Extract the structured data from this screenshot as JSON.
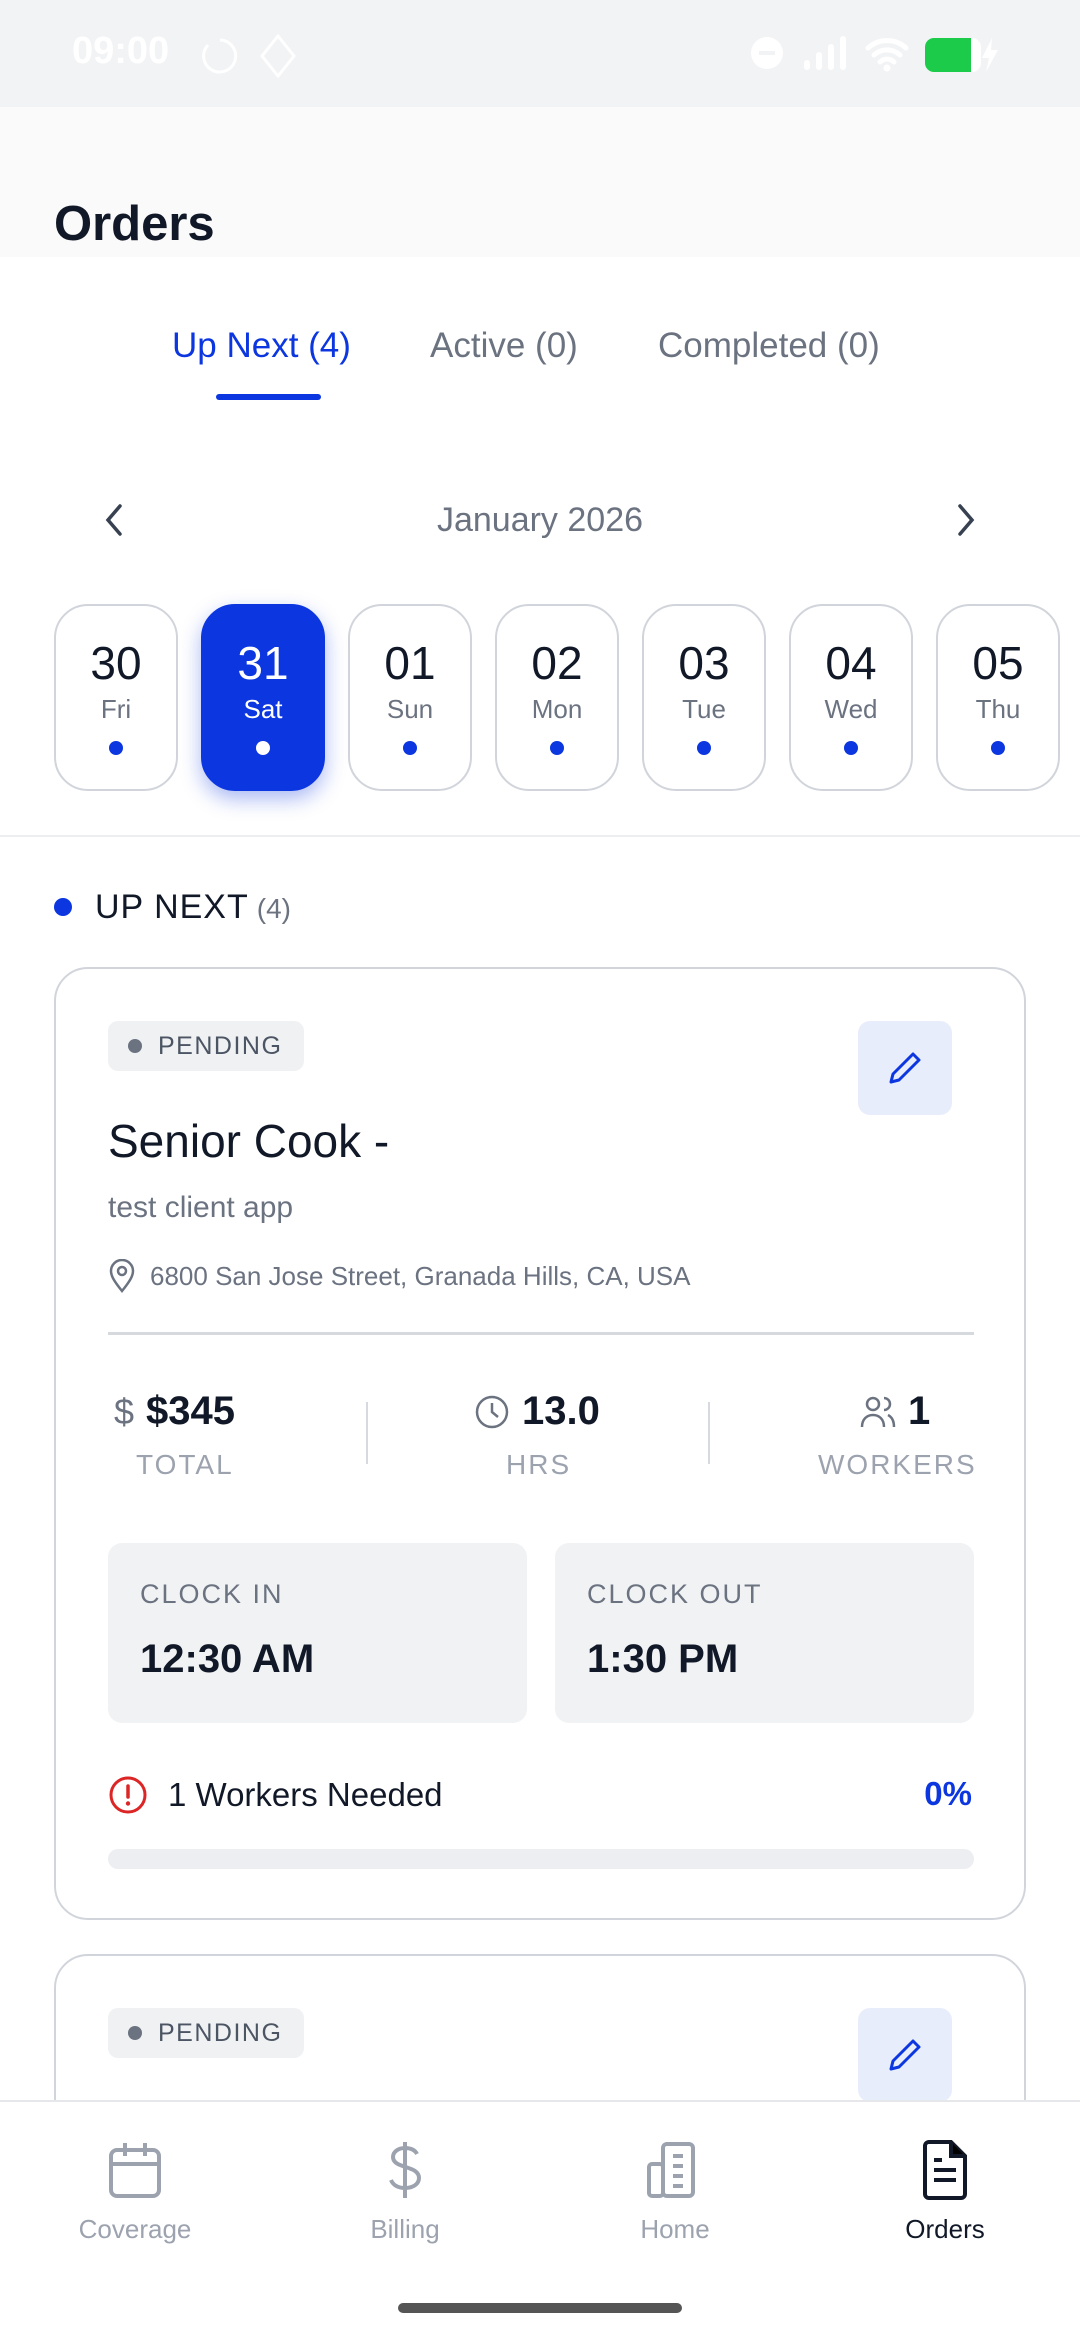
{
  "status_bar": {
    "time": "09:00",
    "battery_color": "#1ccb4a"
  },
  "header": {
    "title": "Orders"
  },
  "tabs": [
    {
      "label": "Up Next (4)",
      "active": true
    },
    {
      "label": "Active (0)"
    },
    {
      "label": "Completed (0)"
    }
  ],
  "calendar": {
    "month": "January 2026",
    "days": [
      {
        "num": "30",
        "dow": "Fri"
      },
      {
        "num": "31",
        "dow": "Sat",
        "selected": true
      },
      {
        "num": "01",
        "dow": "Sun"
      },
      {
        "num": "02",
        "dow": "Mon"
      },
      {
        "num": "03",
        "dow": "Tue"
      },
      {
        "num": "04",
        "dow": "Wed"
      },
      {
        "num": "05",
        "dow": "Thu"
      }
    ]
  },
  "section": {
    "title": "UP NEXT",
    "count": "(4)"
  },
  "orders": [
    {
      "status": "PENDING",
      "title": "Senior Cook -",
      "client": "test client app",
      "address": "6800 San Jose Street, Granada Hills, CA, USA",
      "total": "$345",
      "total_label": "TOTAL",
      "hours": "13.0",
      "hours_label": "HRS",
      "workers": "1",
      "workers_label": "WORKERS",
      "clock_in_label": "CLOCK IN",
      "clock_in": "12:30 AM",
      "clock_out_label": "CLOCK OUT",
      "clock_out": "1:30 PM",
      "needed": "1 Workers Needed",
      "progress": "0%",
      "progress_value": 0
    },
    {
      "status": "PENDING"
    }
  ],
  "bottom_nav": [
    {
      "label": "Coverage",
      "icon": "calendar-icon"
    },
    {
      "label": "Billing",
      "icon": "dollar-icon"
    },
    {
      "label": "Home",
      "icon": "building-icon"
    },
    {
      "label": "Orders",
      "icon": "document-icon",
      "active": true
    }
  ],
  "colors": {
    "accent": "#0b36e0",
    "alert": "#dc2626"
  }
}
